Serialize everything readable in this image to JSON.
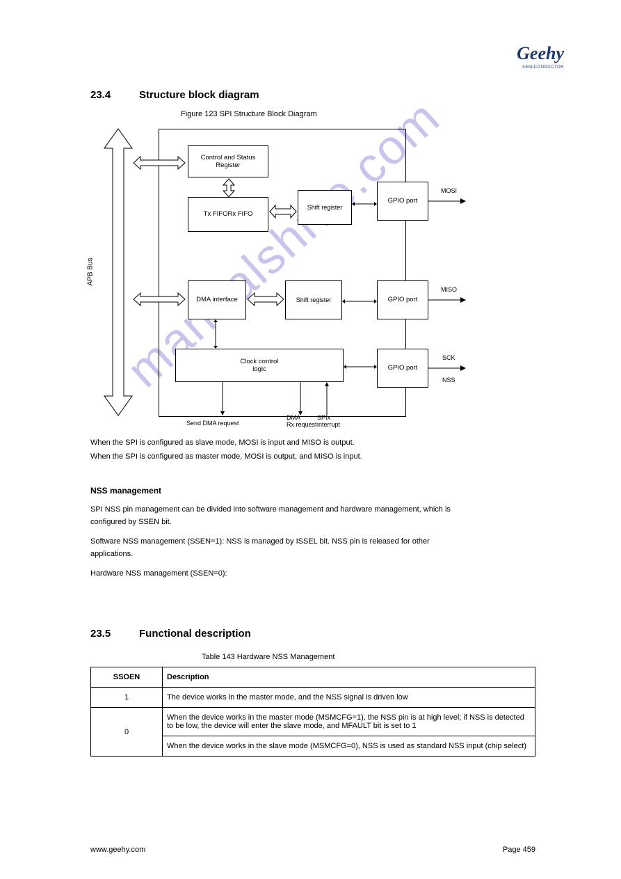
{
  "logo": {
    "name": "Geehy",
    "sub": "SEMICONDUCTOR"
  },
  "headings": {
    "sec234_num": "23.4",
    "sec234_title": "Structure block diagram",
    "sec235_num": "23.5",
    "sec235_title": "Functional description"
  },
  "figure": {
    "title": "Figure 123 SPI Structure Block Diagram"
  },
  "diagram": {
    "bus_label": "APB Bus",
    "csr": "Control and Status\nRegister",
    "tx_fifo": "Tx FIFO",
    "rx_fifo": "Rx FIFO",
    "shift_reg": "Shift register",
    "dma_if": "DMA interface",
    "clock_ctrl": "Clock control\nlogic",
    "gpio_mosi": "GPIO port",
    "gpio_miso": "GPIO port",
    "gpio_sck": "GPIO port",
    "mosi": "MOSI",
    "miso": "MISO",
    "sck": "SCK",
    "nss": "NSS",
    "dma_req": "Send DMA request",
    "dma_rx": "DMA\nRx request",
    "spi_int": "SPIx\ninterrupt"
  },
  "footnote1": "When the SPI is configured as slave mode, MOSI is input and MISO is output.",
  "footnote2": "When the SPI is configured as master mode, MOSI is output, and MISO is input.",
  "para": {
    "title": "NSS management",
    "t0": "SPI NSS pin management can be divided into software management and hardware management, which is",
    "t1": "configured by SSEN bit.",
    "t2": "Software NSS management (SSEN=1): NSS is managed by ISSEL bit. NSS pin is released for other",
    "t3": "applications.",
    "t4": "Hardware NSS management (SSEN=0):"
  },
  "table": {
    "title": "Table 143 Hardware NSS Management",
    "headers": [
      "SSOEN",
      "Description"
    ],
    "rows": [
      [
        "1",
        "The device works in the master mode, and the NSS signal is driven low"
      ],
      [
        "0",
        "When the device works in the master mode (MSMCFG=1), the NSS pin is at high level; if NSS is detected to be low, the device will enter the slave mode, and MFAULT bit is set to 1"
      ],
      [
        "0",
        "When the device works in the slave mode (MSMCFG=0), NSS is used as standard NSS input (chip select)"
      ]
    ]
  },
  "footer": {
    "site": "www.geehy.com",
    "page": "Page 459"
  }
}
